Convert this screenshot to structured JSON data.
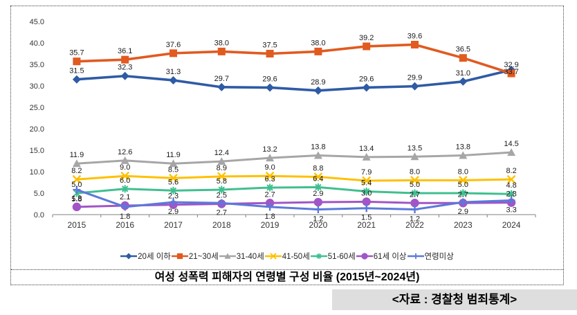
{
  "title": "여성 성폭력 피해자의 연령별 구성 비율 (2015년~2024년)",
  "source_label": "<자료 : 경찰청 범죄통계>",
  "chart_data": {
    "type": "line",
    "categories": [
      "2015",
      "2016",
      "2017",
      "2018",
      "2019",
      "2020",
      "2021",
      "2022",
      "2023",
      "2024"
    ],
    "series": [
      {
        "name": "20세 이하",
        "color": "#2F5BA5",
        "marker": "diamond",
        "label_position": "above",
        "values": [
          31.5,
          32.3,
          31.3,
          29.7,
          29.6,
          28.9,
          29.6,
          29.9,
          31.0,
          33.7
        ]
      },
      {
        "name": "21~30세",
        "color": "#E15A20",
        "marker": "square",
        "label_position": "above",
        "values": [
          35.7,
          36.1,
          37.6,
          38.0,
          37.5,
          38.0,
          39.2,
          39.6,
          36.5,
          32.9
        ]
      },
      {
        "name": "31-40세",
        "color": "#A6A6A6",
        "marker": "triangle",
        "label_position": "above",
        "values": [
          11.9,
          12.6,
          11.9,
          12.4,
          13.2,
          13.8,
          13.4,
          13.5,
          13.8,
          14.5
        ]
      },
      {
        "name": "41-50세",
        "color": "#FFC000",
        "marker": "x",
        "label_position": "above",
        "values": [
          8.2,
          9.0,
          8.5,
          8.9,
          9.0,
          8.8,
          7.9,
          8.0,
          8.0,
          8.2
        ]
      },
      {
        "name": "51-60세",
        "color": "#3FBF8F",
        "marker": "asterisk",
        "label_position": "above",
        "values": [
          5.0,
          6.0,
          5.6,
          5.8,
          6.3,
          6.4,
          5.4,
          5.0,
          5.0,
          4.8
        ]
      },
      {
        "name": "61세 이상",
        "color": "#A155C7",
        "marker": "circle",
        "label_position": "above",
        "values": [
          1.8,
          2.1,
          2.3,
          2.5,
          2.7,
          2.9,
          3.0,
          2.7,
          2.7,
          2.8
        ]
      },
      {
        "name": "연령미상",
        "color": "#5B79D9",
        "marker": "plus",
        "label_position": "below",
        "values": [
          5.8,
          1.8,
          2.9,
          2.7,
          1.8,
          1.2,
          1.5,
          1.2,
          2.9,
          3.3
        ]
      }
    ],
    "ylim": [
      0,
      45
    ],
    "ytick_step": 5,
    "yticks": [
      "0.0",
      "5.0",
      "10.0",
      "15.0",
      "20.0",
      "25.0",
      "30.0",
      "35.0",
      "40.0",
      "45.0"
    ],
    "grid": false,
    "legend_position": "bottom",
    "label_decimals": 1,
    "label_overrides": [
      {
        "series": 0,
        "index": 9,
        "dy": 15
      }
    ]
  }
}
